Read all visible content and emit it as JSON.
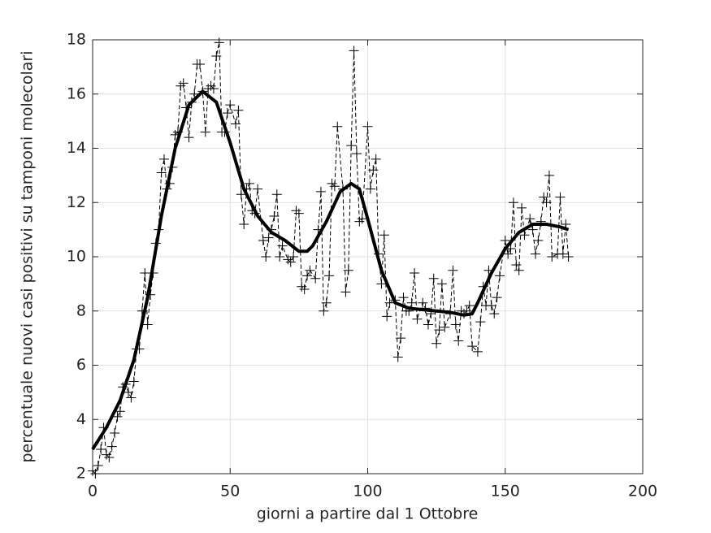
{
  "chart_data": {
    "type": "line",
    "xlabel": "giorni a partire dal 1 Ottobre",
    "ylabel": "percentuale nuovi casi positivi su tamponi molecolari",
    "xlim": [
      0,
      200
    ],
    "xticks": [
      0,
      50,
      100,
      150,
      200
    ],
    "ylim": [
      2,
      18
    ],
    "yticks": [
      2,
      4,
      6,
      8,
      10,
      12,
      14,
      16,
      18
    ],
    "grid": true,
    "series": [
      {
        "color": "#000000",
        "line_style": "dashed",
        "marker": "+",
        "x": [
          0,
          1,
          2,
          3,
          4,
          5,
          6,
          7,
          8,
          9,
          10,
          11,
          12,
          13,
          14,
          15,
          16,
          17,
          18,
          19,
          20,
          21,
          22,
          23,
          24,
          25,
          26,
          27,
          28,
          29,
          30,
          31,
          32,
          33,
          34,
          35,
          36,
          37,
          38,
          39,
          40,
          41,
          42,
          43,
          44,
          45,
          46,
          47,
          48,
          49,
          50,
          52,
          53,
          54,
          55,
          56,
          57,
          58,
          59,
          60,
          62,
          63,
          64,
          65,
          66,
          67,
          68,
          69,
          71,
          72,
          73,
          74,
          75,
          76,
          77,
          78,
          79,
          81,
          82,
          83,
          84,
          85,
          86,
          87,
          88,
          89,
          91,
          92,
          93,
          94,
          95,
          96,
          97,
          98,
          100,
          101,
          102,
          103,
          104,
          105,
          106,
          107,
          108,
          110,
          111,
          112,
          113,
          114,
          115,
          116,
          117,
          118,
          120,
          121,
          122,
          123,
          124,
          125,
          126,
          127,
          128,
          130,
          131,
          132,
          133,
          134,
          135,
          136,
          137,
          138,
          140,
          141,
          142,
          143,
          144,
          145,
          146,
          147,
          148,
          150,
          151,
          152,
          153,
          154,
          155,
          156,
          157,
          159,
          160,
          161,
          162,
          163,
          164,
          165,
          166,
          167,
          169,
          170,
          171,
          172,
          173
        ],
        "values": [
          2.1,
          2.0,
          2.3,
          2.9,
          3.7,
          2.7,
          2.6,
          3.0,
          3.5,
          4.1,
          4.3,
          5.2,
          5.3,
          5.0,
          4.8,
          5.4,
          6.6,
          6.6,
          8.0,
          9.4,
          7.5,
          8.6,
          9.4,
          10.5,
          11.0,
          13.1,
          13.6,
          12.5,
          12.7,
          13.3,
          14.5,
          14.6,
          16.3,
          16.4,
          15.5,
          14.4,
          15.7,
          16.0,
          17.1,
          17.1,
          16.1,
          14.6,
          16.2,
          16.3,
          16.2,
          17.4,
          17.9,
          14.6,
          14.6,
          15.3,
          15.6,
          14.9,
          15.4,
          12.3,
          11.2,
          12.5,
          12.7,
          11.7,
          11.6,
          12.5,
          10.6,
          10.0,
          10.7,
          11.0,
          11.5,
          12.3,
          10.0,
          10.4,
          9.9,
          9.8,
          10.0,
          11.7,
          11.6,
          8.9,
          8.8,
          9.3,
          9.5,
          9.2,
          11.0,
          12.4,
          8.0,
          8.3,
          9.3,
          12.7,
          12.6,
          14.8,
          12.5,
          8.7,
          9.5,
          14.1,
          17.6,
          13.8,
          11.3,
          11.4,
          14.8,
          12.5,
          13.2,
          13.6,
          10.1,
          9.0,
          10.8,
          7.8,
          8.3,
          8.4,
          6.3,
          7.0,
          8.5,
          8.0,
          8.0,
          8.3,
          9.4,
          7.7,
          8.3,
          8.1,
          7.5,
          7.9,
          9.2,
          6.8,
          7.3,
          9.0,
          7.4,
          7.9,
          9.5,
          7.5,
          6.9,
          8.0,
          7.9,
          8.0,
          8.2,
          6.7,
          6.5,
          7.6,
          8.9,
          8.2,
          9.5,
          8.2,
          7.9,
          8.5,
          9.3,
          10.6,
          10.1,
          10.3,
          12.0,
          9.7,
          9.5,
          11.8,
          10.8,
          11.4,
          11.0,
          10.1,
          10.6,
          11.3,
          12.2,
          12.0,
          13.0,
          10.0,
          10.1,
          12.2,
          10.1,
          11.2,
          10.0
        ]
      },
      {
        "color": "#000000",
        "line_style": "solid",
        "x": [
          0,
          5,
          10,
          15,
          20,
          25,
          30,
          35,
          40,
          45,
          50,
          55,
          60,
          65,
          70,
          75,
          78,
          80,
          85,
          90,
          94,
          97,
          100,
          105,
          110,
          115,
          120,
          125,
          130,
          135,
          138,
          140,
          145,
          150,
          155,
          160,
          165,
          170,
          173
        ],
        "values": [
          2.9,
          3.7,
          4.7,
          6.2,
          8.5,
          11.5,
          14.0,
          15.6,
          16.1,
          15.7,
          14.2,
          12.5,
          11.5,
          10.9,
          10.6,
          10.2,
          10.2,
          10.4,
          11.3,
          12.4,
          12.7,
          12.5,
          11.4,
          9.5,
          8.3,
          8.1,
          8.05,
          8.0,
          7.95,
          7.85,
          7.9,
          8.3,
          9.4,
          10.3,
          10.9,
          11.2,
          11.2,
          11.1,
          11.0
        ]
      }
    ]
  }
}
